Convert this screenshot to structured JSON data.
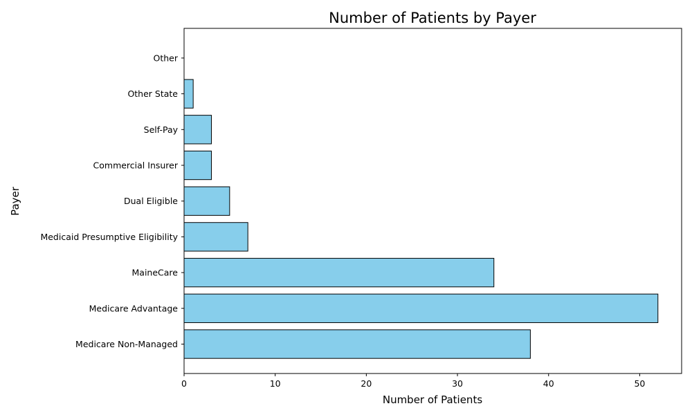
{
  "chart_data": {
    "type": "bar",
    "orientation": "horizontal",
    "title": "Number of Patients by Payer",
    "xlabel": "Number of Patients",
    "ylabel": "Payer",
    "categories": [
      "Medicare Non-Managed",
      "Medicare Advantage",
      "MaineCare",
      "Medicaid Presumptive Eligibility",
      "Dual Eligible",
      "Commercial Insurer",
      "Self-Pay",
      "Other State",
      "Other"
    ],
    "values": [
      38,
      52,
      34,
      7,
      5,
      3,
      3,
      1,
      0
    ],
    "xlim": [
      0,
      54.6
    ],
    "xticks": [
      0,
      10,
      20,
      30,
      40,
      50
    ],
    "grid": false,
    "bar_color": "#87CEEB",
    "edge_color": "#000000"
  }
}
